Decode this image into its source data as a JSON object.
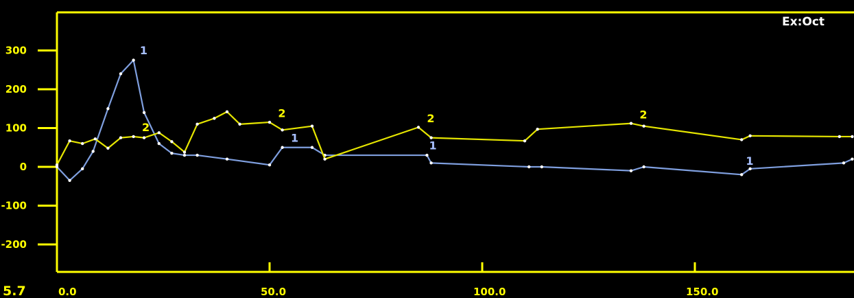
{
  "header_text": "Ex:Oct",
  "corner_value": "5.7",
  "colors": {
    "background": "#000000",
    "axis": "#ffff00",
    "tick_label": "#ffff00",
    "series_1": "#7f9fdf",
    "series_2": "#e6e600",
    "header": "#ffffff"
  },
  "chart_data": {
    "type": "line",
    "title": "",
    "xlabel": "",
    "ylabel": "",
    "xlim": [
      0,
      187
    ],
    "ylim": [
      -270,
      400
    ],
    "grid": false,
    "legend": "none",
    "yticks": [
      300,
      200,
      100,
      0,
      -100,
      -200
    ],
    "ytick_labels": [
      "300",
      "200",
      "100",
      "0",
      "-100",
      "-200"
    ],
    "xticks": [
      0,
      50,
      100,
      150
    ],
    "xtick_labels": [
      "0.0",
      "50.0",
      "100.0",
      "150.0"
    ],
    "series": [
      {
        "label": "1",
        "color": "#7f9fdf",
        "points": [
          [
            0,
            0
          ],
          [
            3,
            -35
          ],
          [
            6,
            -5
          ],
          [
            8.5,
            40
          ],
          [
            12,
            150
          ],
          [
            15,
            240
          ],
          [
            18,
            275
          ],
          [
            20.5,
            140
          ],
          [
            24,
            60
          ],
          [
            27,
            35
          ],
          [
            30,
            30
          ],
          [
            33,
            30
          ],
          [
            40,
            20
          ],
          [
            50,
            5
          ],
          [
            53,
            50
          ],
          [
            60,
            50
          ],
          [
            63,
            30
          ],
          [
            87,
            30
          ],
          [
            88,
            10
          ],
          [
            111,
            0
          ],
          [
            114,
            0
          ],
          [
            135,
            -10
          ],
          [
            138,
            0
          ],
          [
            161,
            -20
          ],
          [
            163,
            -5
          ],
          [
            185,
            10
          ],
          [
            187,
            20
          ]
        ],
        "label_points": [
          [
            19.5,
            290
          ],
          [
            55,
            65
          ],
          [
            87.5,
            45
          ],
          [
            162,
            5
          ]
        ]
      },
      {
        "label": "2",
        "color": "#e6e600",
        "points": [
          [
            0,
            5
          ],
          [
            3,
            67
          ],
          [
            6,
            60
          ],
          [
            9,
            72
          ],
          [
            12,
            48
          ],
          [
            15,
            75
          ],
          [
            18,
            78
          ],
          [
            20.5,
            75
          ],
          [
            24,
            88
          ],
          [
            27,
            65
          ],
          [
            30,
            38
          ],
          [
            33,
            110
          ],
          [
            37,
            125
          ],
          [
            40,
            142
          ],
          [
            43,
            110
          ],
          [
            50,
            115
          ],
          [
            53,
            95
          ],
          [
            60,
            105
          ],
          [
            63,
            20
          ],
          [
            85,
            102
          ],
          [
            88,
            75
          ],
          [
            110,
            67
          ],
          [
            113,
            97
          ],
          [
            135,
            112
          ],
          [
            138,
            105
          ],
          [
            161,
            70
          ],
          [
            163,
            80
          ],
          [
            184,
            78
          ],
          [
            187,
            78
          ]
        ],
        "label_points": [
          [
            20,
            92
          ],
          [
            52,
            128
          ],
          [
            87,
            115
          ],
          [
            137,
            125
          ]
        ]
      }
    ]
  }
}
